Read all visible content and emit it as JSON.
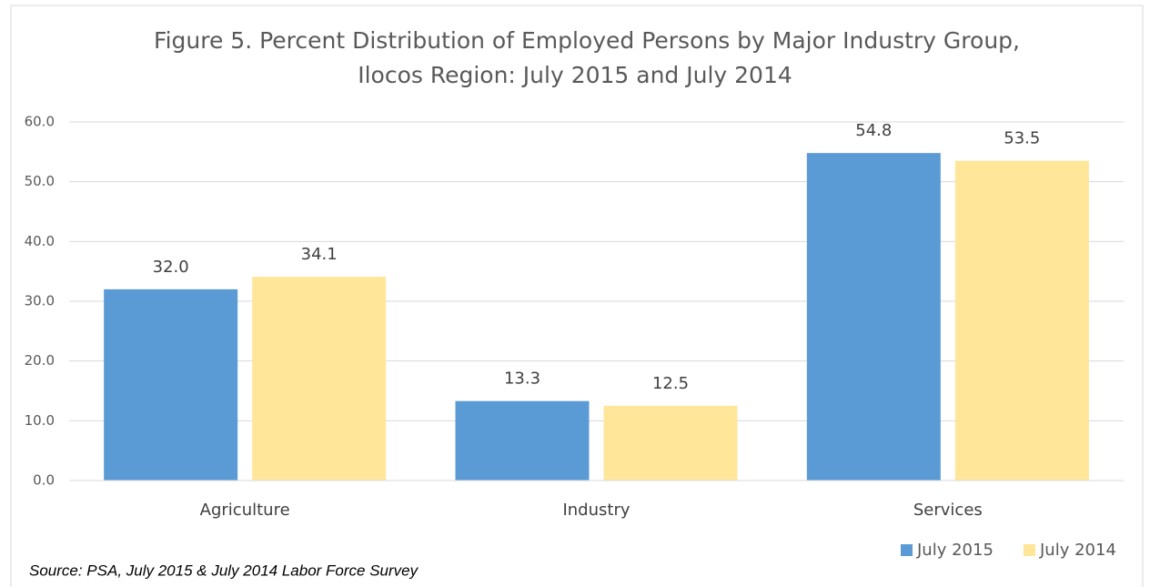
{
  "chart_data": {
    "type": "bar",
    "title": [
      "Figure 5. Percent Distribution of Employed Persons by Major Industry Group,",
      "Ilocos Region: July 2015 and July 2014"
    ],
    "categories": [
      "Agriculture",
      "Industry",
      "Services"
    ],
    "series": [
      {
        "name": "July 2015",
        "color": "#5b9bd5",
        "values": [
          32.0,
          13.3,
          54.8
        ],
        "value_labels": [
          "32.0",
          "13.3",
          "54.8"
        ]
      },
      {
        "name": "July 2014",
        "color": "#ffe699",
        "values": [
          34.1,
          12.5,
          53.5
        ],
        "value_labels": [
          "34.1",
          "12.5",
          "53.5"
        ]
      }
    ],
    "ylim": [
      0,
      60
    ],
    "yticks": [
      {
        "value": 0,
        "label": "0.0"
      },
      {
        "value": 10,
        "label": "10.0"
      },
      {
        "value": 20,
        "label": "20.0"
      },
      {
        "value": 30,
        "label": "30.0"
      },
      {
        "value": 40,
        "label": "40.0"
      },
      {
        "value": 50,
        "label": "50.0"
      },
      {
        "value": 60,
        "label": "60.0"
      }
    ],
    "grid": true,
    "legend": "bottom-right",
    "source": "Source: PSA, July 2015 & July 2014 Labor Force Survey"
  }
}
